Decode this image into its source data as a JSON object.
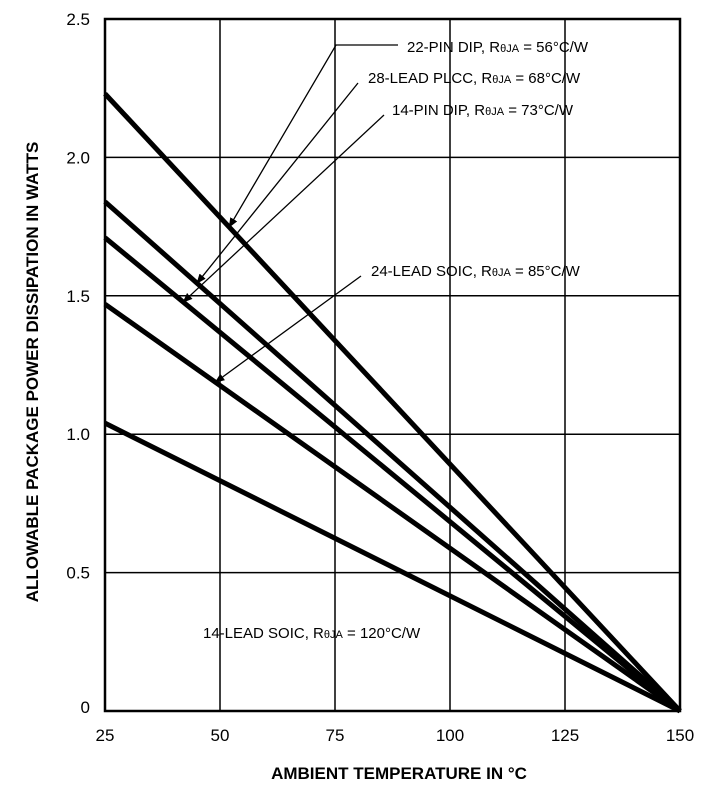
{
  "chart_data": {
    "type": "line",
    "xlabel": "AMBIENT TEMPERATURE IN °C",
    "ylabel": "ALLOWABLE PACKAGE POWER DISSIPATION IN WATTS",
    "xlim": [
      25,
      150
    ],
    "ylim": [
      0,
      2.5
    ],
    "x_ticks": [
      {
        "value": 25,
        "label": "25"
      },
      {
        "value": 50,
        "label": "50"
      },
      {
        "value": 75,
        "label": "75"
      },
      {
        "value": 100,
        "label": "100"
      },
      {
        "value": 125,
        "label": "125"
      },
      {
        "value": 150,
        "label": "150"
      }
    ],
    "y_ticks": [
      {
        "value": 0,
        "label": "0"
      },
      {
        "value": 0.5,
        "label": "0.5"
      },
      {
        "value": 1.0,
        "label": "1.0"
      },
      {
        "value": 1.5,
        "label": "1.5"
      },
      {
        "value": 2.0,
        "label": "2.0"
      },
      {
        "value": 2.5,
        "label": "2.5"
      }
    ],
    "grid": true,
    "series": [
      {
        "name_main": "22-PIN DIP, R",
        "name_sub": "θJA",
        "name_tail": " = 56°C/W",
        "x": [
          25,
          150
        ],
        "y": [
          2.23,
          0
        ]
      },
      {
        "name_main": "28-LEAD PLCC, R",
        "name_sub": "θJA",
        "name_tail": " = 68°C/W",
        "x": [
          25,
          150
        ],
        "y": [
          1.84,
          0
        ]
      },
      {
        "name_main": "14-PIN DIP, R",
        "name_sub": "θJA",
        "name_tail": " = 73°C/W",
        "x": [
          25,
          150
        ],
        "y": [
          1.71,
          0
        ]
      },
      {
        "name_main": "24-LEAD SOIC, R",
        "name_sub": "θJA",
        "name_tail": " = 85°C/W",
        "x": [
          25,
          150
        ],
        "y": [
          1.47,
          0
        ]
      },
      {
        "name_main": "14-LEAD SOIC, R",
        "name_sub": "θJA",
        "name_tail": " = 120°C/W",
        "x": [
          25,
          150
        ],
        "y": [
          1.04,
          0
        ]
      }
    ]
  }
}
